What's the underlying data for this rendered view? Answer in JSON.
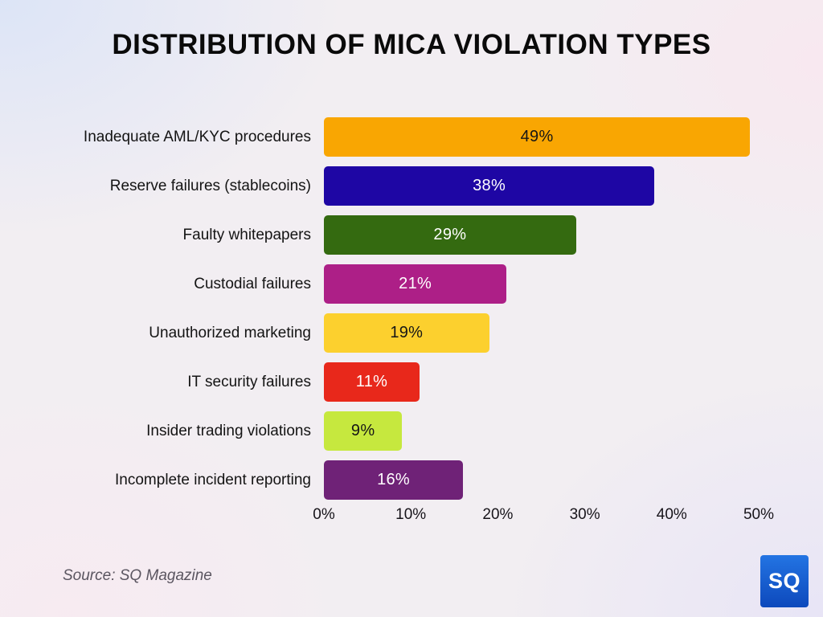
{
  "title": "DISTRIBUTION OF MICA VIOLATION TYPES",
  "source_note": "Source: SQ Magazine",
  "logo": {
    "text": "SQ",
    "bg_top": "#2374e3",
    "bg_bottom": "#0d49bc"
  },
  "chart_data": {
    "type": "bar",
    "orientation": "horizontal",
    "title": "DISTRIBUTION OF MICA VIOLATION TYPES",
    "xlabel": "",
    "ylabel": "",
    "xlim": [
      0,
      50
    ],
    "grid": false,
    "x_ticks": [
      "0%",
      "10%",
      "20%",
      "30%",
      "40%",
      "50%"
    ],
    "x_tick_values": [
      0,
      10,
      20,
      30,
      40,
      50
    ],
    "categories": [
      "Inadequate AML/KYC procedures",
      "Reserve failures (stablecoins)",
      "Faulty whitepapers",
      "Custodial failures",
      "Unauthorized marketing",
      "IT security failures",
      "Insider trading violations",
      "Incomplete incident reporting"
    ],
    "values": [
      49,
      38,
      29,
      21,
      19,
      11,
      9,
      16
    ],
    "value_labels": [
      "49%",
      "38%",
      "29%",
      "21%",
      "19%",
      "11%",
      "9%",
      "16%"
    ],
    "bar_colors": [
      "#F9A602",
      "#1E06A4",
      "#346A10",
      "#AD1F87",
      "#FCD02E",
      "#E8281B",
      "#C6E83E",
      "#6F2277"
    ],
    "value_label_colors": [
      "#161616",
      "#FFFFFF",
      "#FFFFFF",
      "#FFFFFF",
      "#161616",
      "#FFFFFF",
      "#161616",
      "#FFFFFF"
    ]
  }
}
